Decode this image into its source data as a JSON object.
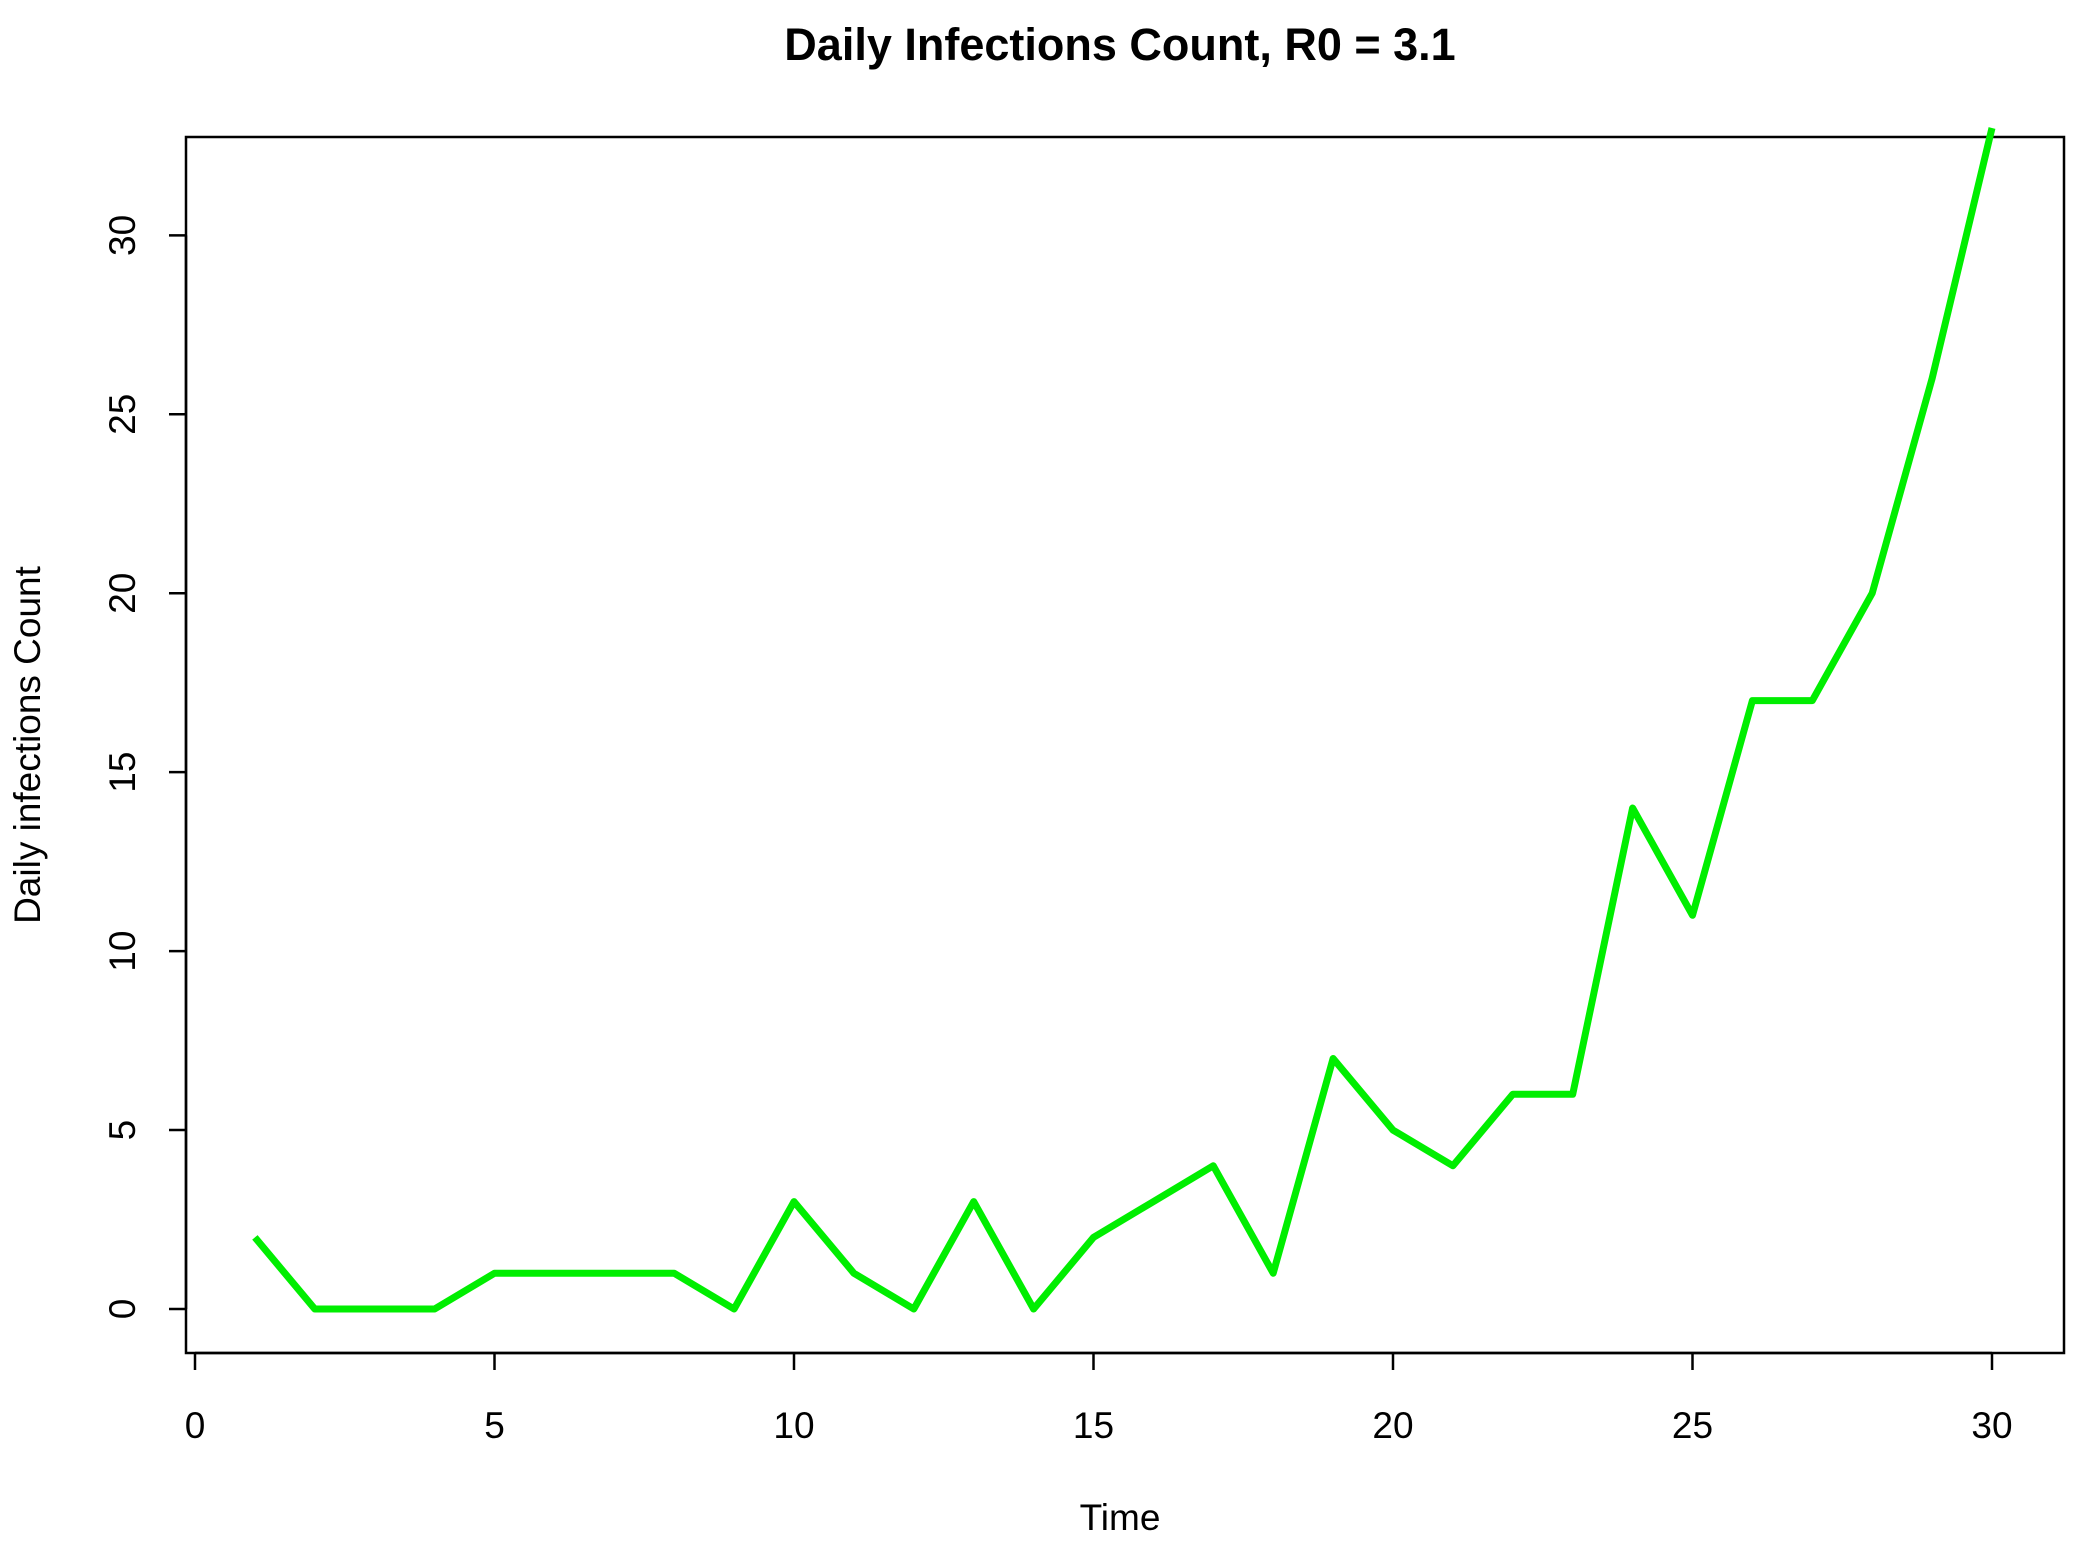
{
  "chart_data": {
    "type": "line",
    "title": "Daily Infections Count, R0 = 3.1",
    "xlabel": "Time",
    "ylabel": "Daily infections Count",
    "xlim": [
      0,
      30
    ],
    "ylim": [
      0,
      33
    ],
    "x_ticks": [
      0,
      5,
      10,
      15,
      20,
      25,
      30
    ],
    "y_ticks": [
      0,
      5,
      10,
      15,
      20,
      25,
      30
    ],
    "grid": false,
    "legend": "none",
    "series": [
      {
        "color": "#00ee00",
        "x": [
          1,
          2,
          3,
          4,
          5,
          6,
          7,
          8,
          9,
          10,
          11,
          12,
          13,
          14,
          15,
          16,
          17,
          18,
          19,
          20,
          21,
          22,
          23,
          24,
          25,
          26,
          27,
          28,
          29,
          30
        ],
        "y": [
          2,
          0,
          0,
          0,
          1,
          1,
          1,
          1,
          0,
          3,
          1,
          0,
          3,
          0,
          2,
          3,
          4,
          1,
          7,
          5,
          4,
          6,
          6,
          14,
          11,
          17,
          17,
          20,
          26,
          33
        ]
      }
    ]
  }
}
